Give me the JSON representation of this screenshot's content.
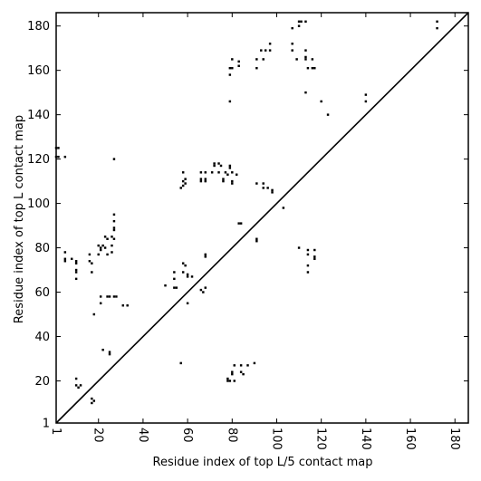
{
  "chart_data": {
    "type": "scatter",
    "xlabel": "Residue index of top L/5 contact map",
    "ylabel": "Residue index of top L contact map",
    "xlim": [
      1,
      186
    ],
    "ylim": [
      1,
      186
    ],
    "xticks": [
      1,
      20,
      40,
      60,
      80,
      100,
      120,
      140,
      160,
      180
    ],
    "yticks": [
      1,
      20,
      40,
      60,
      80,
      100,
      120,
      140,
      160,
      180
    ],
    "grid": false,
    "diagonal": true,
    "marker_color": "#000000",
    "upper_points": [
      [
        1,
        125
      ],
      [
        2,
        125
      ],
      [
        1,
        121
      ],
      [
        2,
        121
      ],
      [
        5,
        121
      ],
      [
        5,
        78
      ],
      [
        5,
        75
      ],
      [
        5,
        74
      ],
      [
        8,
        75
      ],
      [
        10,
        74
      ],
      [
        10,
        73
      ],
      [
        10,
        70
      ],
      [
        10,
        69
      ],
      [
        10,
        66
      ],
      [
        16,
        74
      ],
      [
        17,
        73
      ],
      [
        17,
        69
      ],
      [
        16,
        77
      ],
      [
        18,
        50
      ],
      [
        20,
        81
      ],
      [
        21,
        80
      ],
      [
        21,
        79
      ],
      [
        20,
        77
      ],
      [
        22,
        81
      ],
      [
        23,
        85
      ],
      [
        24,
        84
      ],
      [
        23,
        80
      ],
      [
        24,
        77
      ],
      [
        21,
        58
      ],
      [
        21,
        55
      ],
      [
        24,
        58
      ],
      [
        25,
        58
      ],
      [
        27,
        95
      ],
      [
        27,
        92
      ],
      [
        27,
        89
      ],
      [
        27,
        88
      ],
      [
        26,
        85
      ],
      [
        27,
        84
      ],
      [
        26,
        81
      ],
      [
        27,
        120
      ],
      [
        26,
        78
      ],
      [
        28,
        58
      ],
      [
        27,
        58
      ],
      [
        31,
        54
      ],
      [
        33,
        54
      ],
      [
        50,
        63
      ],
      [
        54,
        69
      ],
      [
        54,
        66
      ],
      [
        54,
        62
      ],
      [
        55,
        62
      ],
      [
        57,
        107
      ],
      [
        58,
        108
      ],
      [
        59,
        109
      ],
      [
        58,
        110
      ],
      [
        59,
        111
      ],
      [
        58,
        114
      ],
      [
        58,
        73
      ],
      [
        59,
        72
      ],
      [
        58,
        69
      ],
      [
        60,
        68
      ],
      [
        60,
        67
      ],
      [
        62,
        67
      ],
      [
        60,
        55
      ],
      [
        66,
        110
      ],
      [
        66,
        111
      ],
      [
        66,
        114
      ],
      [
        68,
        114
      ],
      [
        68,
        110
      ],
      [
        68,
        111
      ],
      [
        66,
        61
      ],
      [
        67,
        60
      ],
      [
        68,
        62
      ],
      [
        68,
        77
      ],
      [
        68,
        76
      ],
      [
        71,
        114
      ],
      [
        72,
        117
      ],
      [
        72,
        118
      ],
      [
        74,
        118
      ],
      [
        74,
        114
      ],
      [
        75,
        117
      ],
      [
        76,
        111
      ],
      [
        76,
        110
      ],
      [
        77,
        114
      ],
      [
        78,
        113
      ],
      [
        79,
        117
      ],
      [
        79,
        116
      ],
      [
        80,
        114
      ],
      [
        80,
        110
      ],
      [
        80,
        109
      ],
      [
        82,
        113
      ],
      [
        83,
        91
      ],
      [
        84,
        91
      ],
      [
        79,
        146
      ],
      [
        79,
        158
      ],
      [
        79,
        161
      ],
      [
        80,
        165
      ],
      [
        80,
        161
      ],
      [
        83,
        164
      ],
      [
        83,
        162
      ],
      [
        91,
        161
      ],
      [
        91,
        165
      ],
      [
        93,
        169
      ],
      [
        95,
        169
      ],
      [
        94,
        165
      ],
      [
        97,
        172
      ],
      [
        97,
        169
      ],
      [
        91,
        109
      ],
      [
        94,
        109
      ],
      [
        94,
        107
      ],
      [
        96,
        107
      ],
      [
        98,
        106
      ],
      [
        98,
        105
      ],
      [
        91,
        84
      ],
      [
        91,
        83
      ],
      [
        103,
        98
      ],
      [
        107,
        172
      ],
      [
        107,
        179
      ],
      [
        107,
        169
      ],
      [
        110,
        180
      ],
      [
        109,
        165
      ],
      [
        110,
        182
      ],
      [
        111,
        182
      ],
      [
        113,
        182
      ],
      [
        113,
        169
      ],
      [
        113,
        166
      ],
      [
        113,
        165
      ],
      [
        114,
        161
      ],
      [
        116,
        165
      ],
      [
        116,
        161
      ],
      [
        117,
        161
      ],
      [
        113,
        150
      ],
      [
        120,
        146
      ],
      [
        123,
        140
      ],
      [
        140,
        149
      ],
      [
        140,
        146
      ],
      [
        110,
        80
      ],
      [
        114,
        79
      ],
      [
        114,
        77
      ],
      [
        114,
        72
      ],
      [
        114,
        69
      ],
      [
        117,
        79
      ],
      [
        117,
        76
      ],
      [
        117,
        75
      ],
      [
        172,
        182
      ],
      [
        172,
        179
      ]
    ],
    "lower_points": [
      [
        10,
        21
      ],
      [
        10,
        18
      ],
      [
        11,
        17
      ],
      [
        12,
        18
      ],
      [
        17,
        12
      ],
      [
        17,
        10
      ],
      [
        18,
        11
      ],
      [
        22,
        34
      ],
      [
        25,
        33
      ],
      [
        25,
        32
      ],
      [
        57,
        28
      ],
      [
        78,
        21
      ],
      [
        78,
        20
      ],
      [
        79,
        20
      ],
      [
        80,
        24
      ],
      [
        80,
        23
      ],
      [
        81,
        20
      ],
      [
        81,
        27
      ],
      [
        84,
        27
      ],
      [
        85,
        23
      ],
      [
        84,
        24
      ],
      [
        87,
        27
      ],
      [
        90,
        28
      ]
    ]
  }
}
